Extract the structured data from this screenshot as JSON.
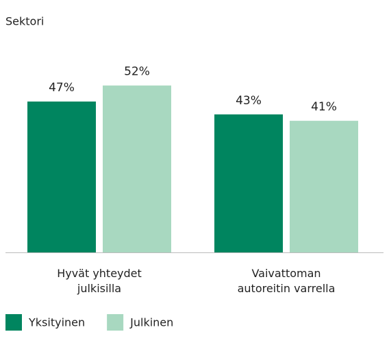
{
  "chart_data": {
    "type": "bar",
    "title": "Sektori",
    "categories": [
      "Hyvät yhteydet julkisilla",
      "Vaivattoman autoreitin varrella"
    ],
    "series": [
      {
        "name": "Yksityinen",
        "color": "#00855f",
        "values": [
          47,
          43
        ],
        "value_labels": [
          "47%",
          "43%"
        ]
      },
      {
        "name": "Julkinen",
        "color": "#a8d8c0",
        "values": [
          52,
          41
        ],
        "value_labels": [
          "52%",
          "41%"
        ]
      }
    ],
    "legend": "bottom-left"
  }
}
